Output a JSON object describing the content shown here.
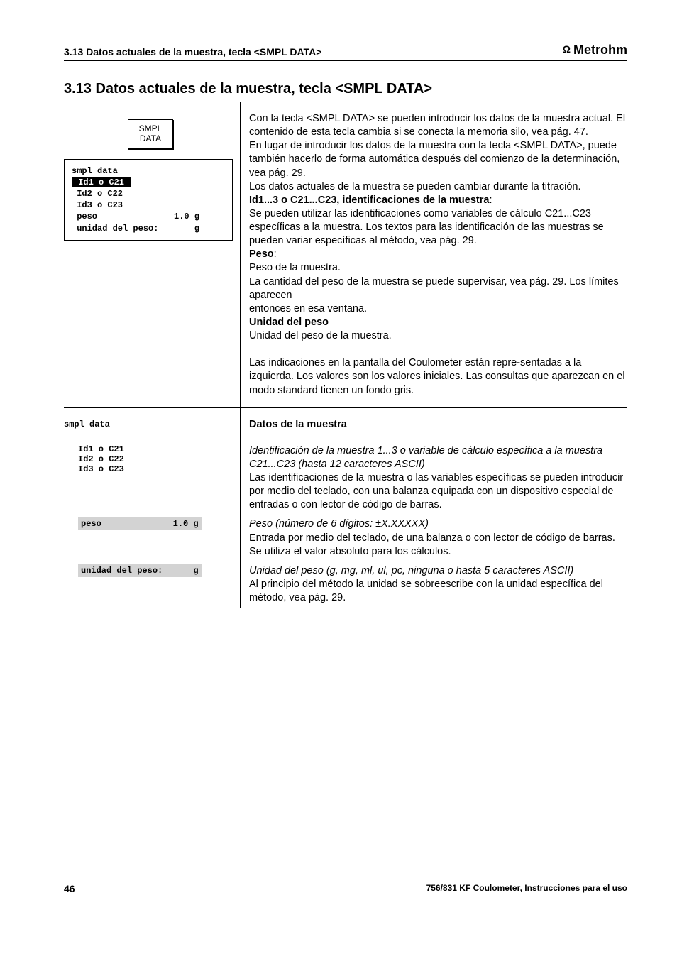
{
  "header": {
    "running": "3.13 Datos actuales de la muestra, tecla <SMPL DATA>",
    "brand": "Metrohm"
  },
  "title": "3.13  Datos actuales de la muestra, tecla <SMPL DATA>",
  "button": {
    "line1": "SMPL",
    "line2": "DATA"
  },
  "screen": {
    "l1": "smpl data",
    "l2": " Id1 o C21 ",
    "l3": " Id2 o C22",
    "l4": " Id3 o C23",
    "l5": " peso               1.0 g",
    "l6": " unidad del peso:       g"
  },
  "intro": {
    "p1a": "Con la tecla <SMPL DATA> se pueden introducir los datos de la muestra actual. El contenido de esta tecla cambia si se conecta la memoria silo, vea pág. 47.",
    "p1b": "En lugar de introducir los datos de la muestra con la tecla <SMPL DATA>, puede también hacerlo de forma automática después del comienzo de la determinación, vea pág. 29.",
    "p1c": "Los datos actuales de la muestra se pueden cambiar durante la titración.",
    "h1": "Id1...3 o C21...C23, identificaciones de la muestra",
    "t1": "Se pueden utilizar las identificaciones como variables de cálculo C21...C23 específicas a la muestra. Los textos para las identificación de las muestras se pueden variar específicas al método, vea pág. 29.",
    "h2": "Peso",
    "t2a": "Peso de la muestra.",
    "t2b": "La cantidad del peso de la muestra se puede supervisar, vea pág. 29. Los límites aparecen",
    "t2c": "entonces en esa ventana.",
    "h3": "Unidad del peso",
    "t3": "Unidad del peso de la muestra.",
    "p2": "Las indicaciones en la pantalla del Coulometer están repre-sentadas a la izquierda. Los valores son los valores iniciales. Las consultas que aparezcan en el modo standard tienen un fondo gris."
  },
  "rows": {
    "datos": {
      "left": "smpl data",
      "heading": "Datos de la muestra"
    },
    "id": {
      "left1": "Id1 o C21",
      "left2": "Id2 o C22",
      "left3": "Id3 o C23",
      "ital": "Identificación de la muestra 1...3 o variable de cálculo específica a la muestra C21...C23 (hasta 12 caracteres ASCII)",
      "body": "Las identificaciones de la muestra o las variables específicas se pueden introducir por medio del teclado, con una balanza equipada con un dispositivo especial de entradas o con lector de código de barras."
    },
    "peso": {
      "left": "peso              1.0 g",
      "ital": "Peso (número de 6 dígitos: ±X.XXXXX)",
      "body": "Entrada por medio del teclado, de una balanza o con lector de código de barras. Se utiliza el valor absoluto para los cálculos."
    },
    "unidad": {
      "left": "unidad del peso:      g",
      "ital": "Unidad del peso (g, mg, ml, ul, pc, ninguna o hasta 5 caracteres ASCII)",
      "body": "Al principio del método la unidad se sobreescribe con la unidad específica del método, vea pág. 29."
    }
  },
  "footer": {
    "page": "46",
    "doc": "756/831 KF Coulometer, Instrucciones para el uso"
  }
}
